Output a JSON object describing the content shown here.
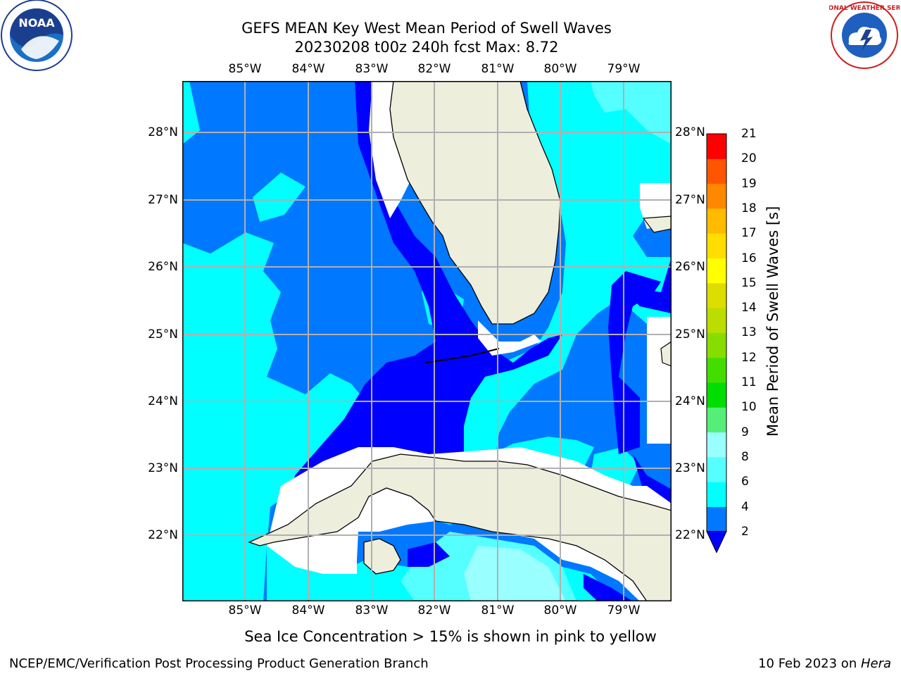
{
  "title": {
    "line1": "GEFS MEAN Key West Mean Period of Swell Waves",
    "line2": "20230208 t00z 240h fcst   Max: 8.72"
  },
  "map": {
    "lon_labels": [
      "85°W",
      "84°W",
      "83°W",
      "82°W",
      "81°W",
      "80°W",
      "79°W"
    ],
    "lat_labels": [
      "28°N",
      "27°N",
      "26°N",
      "25°N",
      "24°N",
      "23°N",
      "22°N"
    ],
    "colors": {
      "land": "#eeeedd",
      "band_2_4": "#0078ff",
      "band_4_6": "#00ffff",
      "band_6_8": "#55ffff",
      "band_8_9": "#99ffff",
      "below_2": "#0000ff",
      "gridline": "#b0b0b0"
    }
  },
  "colorbar": {
    "label": "Mean Period of Swell Waves [s]",
    "ticks": [
      "2",
      "4",
      "6",
      "8",
      "9",
      "10",
      "11",
      "12",
      "13",
      "14",
      "15",
      "16",
      "17",
      "18",
      "19",
      "20",
      "21"
    ],
    "colors": [
      "#0078ff",
      "#00ffff",
      "#55ffff",
      "#99ffff",
      "#55ee77",
      "#00dd00",
      "#44dd00",
      "#88dd00",
      "#bbdd00",
      "#dddd00",
      "#ffff00",
      "#ffdd00",
      "#ffbb00",
      "#ff8800",
      "#ff5500",
      "#ff2200",
      "#ff0000"
    ],
    "under_color": "#0000ff"
  },
  "note": "Sea Ice Concentration > 15% is shown in pink to yellow",
  "footer": {
    "left": "NCEP/EMC/Verification Post Processing Product Generation Branch",
    "date": "10 Feb 2023 on ",
    "host": "Hera"
  },
  "logos": {
    "noaa_text": "NOAA",
    "nws_text": "NATIONAL WEATHER SERVICE"
  }
}
